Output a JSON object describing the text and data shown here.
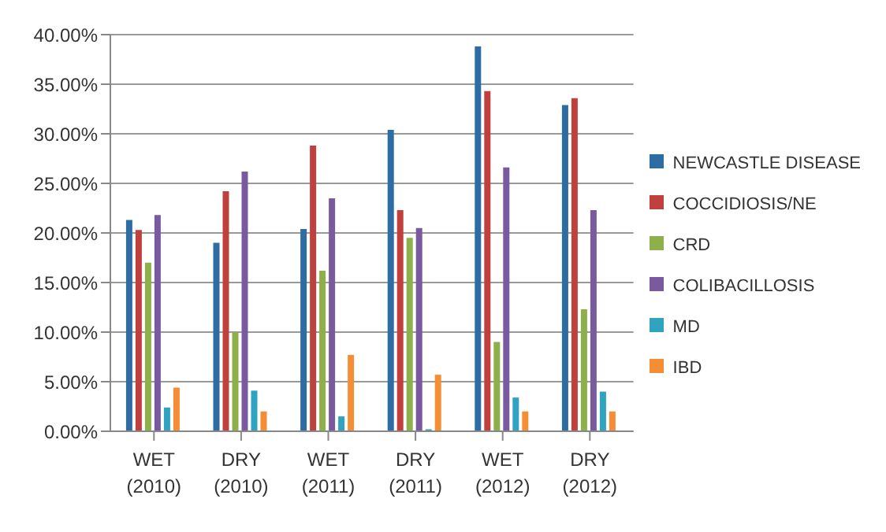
{
  "chart_data": {
    "type": "bar",
    "categories": [
      "WET (2010)",
      "DRY (2010)",
      "WET (2011)",
      "DRY (2011)",
      "WET (2012)",
      "DRY (2012)"
    ],
    "series": [
      {
        "name": "NEWCASTLE DISEASE",
        "color": "#2e6da4",
        "values": [
          21.3,
          19,
          20.4,
          30.4,
          38.8,
          32.9
        ]
      },
      {
        "name": "COCCIDIOSIS/NE",
        "color": "#c0403d",
        "values": [
          20.3,
          24.2,
          28.8,
          22.3,
          34.3,
          33.6
        ]
      },
      {
        "name": "CRD",
        "color": "#8db04a",
        "values": [
          17,
          10,
          16.2,
          19.5,
          9,
          12.3
        ]
      },
      {
        "name": "COLIBACILLOSIS",
        "color": "#7a5a9e",
        "values": [
          21.8,
          26.2,
          23.5,
          20.5,
          26.6,
          22.3
        ]
      },
      {
        "name": "MD",
        "color": "#2fa3bf",
        "values": [
          2.4,
          4.1,
          1.5,
          0.2,
          3.4,
          4
        ]
      },
      {
        "name": "IBD",
        "color": "#f48d35",
        "values": [
          4.4,
          2,
          7.7,
          5.7,
          2,
          2
        ]
      }
    ],
    "ylim": [
      0,
      40
    ],
    "yticks": [
      {
        "value": 0,
        "label": "0.00%"
      },
      {
        "value": 5,
        "label": "5.00%"
      },
      {
        "value": 10,
        "label": "10.00%"
      },
      {
        "value": 15,
        "label": "15.00%"
      },
      {
        "value": 20,
        "label": "20.00%"
      },
      {
        "value": 25,
        "label": "25.00%"
      },
      {
        "value": 30,
        "label": "30.00%"
      },
      {
        "value": 35,
        "label": "35.00%"
      },
      {
        "value": 40,
        "label": "40.00%"
      }
    ],
    "grid": "y",
    "legend": "right"
  }
}
